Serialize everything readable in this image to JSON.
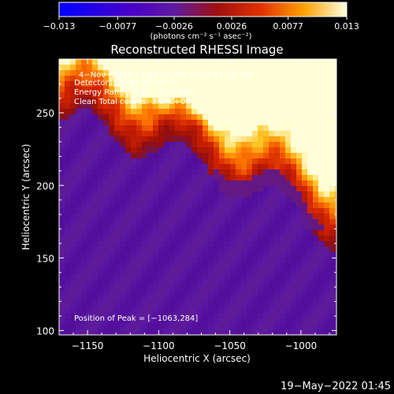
{
  "chart_data": {
    "type": "heatmap",
    "title": "Reconstructed RHESSI Image",
    "xlabel": "Heliocentric X (arcsec)",
    "ylabel": "Heliocentric Y (arcsec)",
    "xlim": [
      -1170,
      -975
    ],
    "ylim": [
      97,
      287
    ],
    "x_ticks": [
      -1150,
      -1100,
      -1050,
      -1000
    ],
    "x_tick_labels": [
      "−1150",
      "−1100",
      "−1050",
      "−1000"
    ],
    "y_ticks": [
      100,
      150,
      200,
      250
    ],
    "y_tick_labels": [
      "100",
      "150",
      "200",
      "250"
    ],
    "colorbar": {
      "range": [
        -0.013,
        0.013
      ],
      "ticks": [
        -0.013,
        -0.0077,
        -0.0026,
        0.0026,
        0.0077,
        0.013
      ],
      "tick_labels": [
        "−0.013",
        "−0.0077",
        "−0.0026",
        "0.0026",
        "0.0077",
        "0.013"
      ],
      "unit_label": "(photons cm⁻² s⁻¹ asec⁻²)"
    },
    "annotations": [
      "4−Nov−2014 13:38:12.000 to 13:42:12.000",
      "Detectors: 3F 6F 9F, Att 0",
      "Energy Range: 6.0 − 12.0 keV",
      "Clean      Total counts: 3.07E+04",
      "Position of Peak = [−1063,284]"
    ],
    "peak": {
      "x": -1063,
      "y": 284
    },
    "image_value_range": [
      -0.002,
      0.013
    ],
    "footer": "19−May−2022 01:45"
  }
}
